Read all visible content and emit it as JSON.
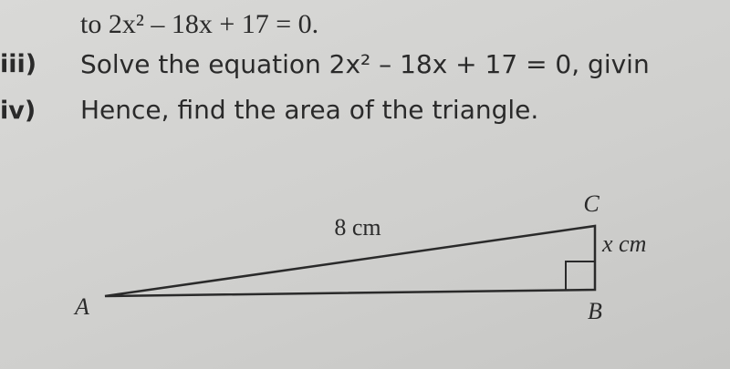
{
  "question": {
    "continuation": "to 2x² – 18x + 17 = 0.",
    "items": [
      {
        "marker": "iii)",
        "text": "Solve the equation 2x² – 18x + 17 = 0, givin"
      },
      {
        "marker": "iv)",
        "text": "Hence, find the area of the triangle."
      }
    ]
  },
  "figure": {
    "hypotenuse": "8 cm",
    "side": "x cm",
    "vertex_a": "A",
    "vertex_b": "B",
    "vertex_c": "C"
  }
}
